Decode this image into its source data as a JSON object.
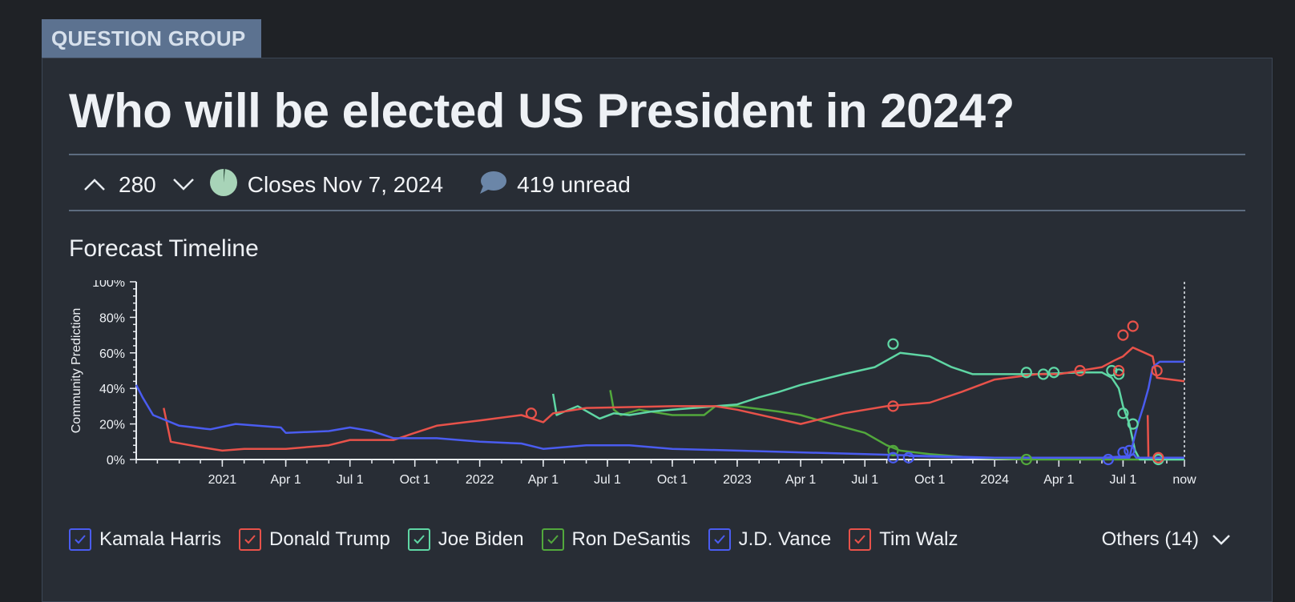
{
  "tag": "QUESTION GROUP",
  "title": "Who will be elected US President in 2024?",
  "meta": {
    "votes": "280",
    "closes": "Closes Nov 7, 2024",
    "comments": "419 unread"
  },
  "section_title": "Forecast Timeline",
  "others": "Others (14)",
  "colors": {
    "harris": "#4a5cf0",
    "trump": "#e8524a",
    "biden": "#5fd6a4",
    "desantis": "#52a83c",
    "vance": "#4a5cf0",
    "walz": "#e8524a",
    "background": "#282d35"
  },
  "chart_data": {
    "type": "line",
    "ylabel": "Community Prediction",
    "yticks": [
      "0%",
      "20%",
      "40%",
      "60%",
      "80%",
      "100%"
    ],
    "ylim": [
      0,
      100
    ],
    "x_range": [
      "2020-09-01",
      "2024-09-26"
    ],
    "xticks": [
      {
        "date": "2021-01-01",
        "label": "2021"
      },
      {
        "date": "2021-04-01",
        "label": "Apr 1"
      },
      {
        "date": "2021-07-01",
        "label": "Jul 1"
      },
      {
        "date": "2021-10-01",
        "label": "Oct 1"
      },
      {
        "date": "2022-01-01",
        "label": "2022"
      },
      {
        "date": "2022-04-01",
        "label": "Apr 1"
      },
      {
        "date": "2022-07-01",
        "label": "Jul 1"
      },
      {
        "date": "2022-10-01",
        "label": "Oct 1"
      },
      {
        "date": "2023-01-01",
        "label": "2023"
      },
      {
        "date": "2023-04-01",
        "label": "Apr 1"
      },
      {
        "date": "2023-07-01",
        "label": "Jul 1"
      },
      {
        "date": "2023-10-01",
        "label": "Oct 1"
      },
      {
        "date": "2024-01-01",
        "label": "2024"
      },
      {
        "date": "2024-04-01",
        "label": "Apr 1"
      },
      {
        "date": "2024-07-01",
        "label": "Jul 1"
      },
      {
        "date": "2024-09-26",
        "label": "now"
      }
    ],
    "series": [
      {
        "name": "Kamala Harris",
        "key": "harris",
        "points": [
          [
            "2020-09-01",
            42
          ],
          [
            "2020-09-10",
            35
          ],
          [
            "2020-09-25",
            25
          ],
          [
            "2020-11-01",
            19
          ],
          [
            "2020-12-15",
            17
          ],
          [
            "2021-01-20",
            20
          ],
          [
            "2021-03-25",
            18
          ],
          [
            "2021-04-01",
            15
          ],
          [
            "2021-06-01",
            16
          ],
          [
            "2021-07-01",
            18
          ],
          [
            "2021-08-01",
            16
          ],
          [
            "2021-09-01",
            12
          ],
          [
            "2021-11-01",
            12
          ],
          [
            "2022-01-01",
            10
          ],
          [
            "2022-03-01",
            9
          ],
          [
            "2022-04-01",
            6
          ],
          [
            "2022-06-01",
            8
          ],
          [
            "2022-08-01",
            8
          ],
          [
            "2022-10-01",
            6
          ],
          [
            "2023-01-01",
            5
          ],
          [
            "2023-04-01",
            4
          ],
          [
            "2023-07-01",
            3
          ],
          [
            "2023-10-01",
            2
          ],
          [
            "2024-01-01",
            1
          ],
          [
            "2024-07-10",
            1
          ],
          [
            "2024-07-22",
            20
          ],
          [
            "2024-07-30",
            30
          ],
          [
            "2024-08-06",
            40
          ],
          [
            "2024-08-12",
            52
          ],
          [
            "2024-08-22",
            55
          ],
          [
            "2024-09-26",
            55
          ]
        ]
      },
      {
        "name": "Donald Trump",
        "key": "trump",
        "points": [
          [
            "2020-10-10",
            29
          ],
          [
            "2020-10-20",
            10
          ],
          [
            "2020-12-01",
            7
          ],
          [
            "2021-01-01",
            5
          ],
          [
            "2021-02-01",
            6
          ],
          [
            "2021-04-01",
            6
          ],
          [
            "2021-06-01",
            8
          ],
          [
            "2021-07-01",
            11
          ],
          [
            "2021-09-01",
            11
          ],
          [
            "2021-10-01",
            15
          ],
          [
            "2021-11-01",
            19
          ],
          [
            "2022-01-01",
            22
          ],
          [
            "2022-03-01",
            25
          ],
          [
            "2022-04-01",
            21
          ],
          [
            "2022-04-15",
            26
          ],
          [
            "2022-06-01",
            29
          ],
          [
            "2022-10-01",
            30
          ],
          [
            "2022-12-01",
            30
          ],
          [
            "2023-01-01",
            28
          ],
          [
            "2023-04-01",
            20
          ],
          [
            "2023-06-01",
            26
          ],
          [
            "2023-08-01",
            30
          ],
          [
            "2023-10-01",
            32
          ],
          [
            "2023-11-15",
            38
          ],
          [
            "2024-01-01",
            45
          ],
          [
            "2024-03-01",
            48
          ],
          [
            "2024-04-01",
            48
          ],
          [
            "2024-06-01",
            52
          ],
          [
            "2024-06-20",
            56
          ],
          [
            "2024-07-01",
            58
          ],
          [
            "2024-07-15",
            63
          ],
          [
            "2024-08-01",
            60
          ],
          [
            "2024-08-12",
            58
          ],
          [
            "2024-08-18",
            46
          ],
          [
            "2024-09-26",
            44
          ]
        ],
        "markers": [
          [
            "2022-03-15",
            26
          ],
          [
            "2023-08-10",
            30
          ],
          [
            "2024-05-01",
            50
          ],
          [
            "2024-06-25",
            50
          ],
          [
            "2024-07-01",
            70
          ],
          [
            "2024-07-15",
            75
          ],
          [
            "2024-08-18",
            50
          ]
        ]
      },
      {
        "name": "Joe Biden",
        "key": "biden",
        "points": [
          [
            "2022-04-15",
            37
          ],
          [
            "2022-04-20",
            25
          ],
          [
            "2022-05-01",
            27
          ],
          [
            "2022-05-20",
            30
          ],
          [
            "2022-06-20",
            23
          ],
          [
            "2022-07-10",
            26
          ],
          [
            "2022-08-01",
            25
          ],
          [
            "2022-09-01",
            27
          ],
          [
            "2022-10-01",
            28
          ],
          [
            "2022-11-01",
            29
          ],
          [
            "2022-12-01",
            30
          ],
          [
            "2023-01-01",
            31
          ],
          [
            "2023-02-01",
            35
          ],
          [
            "2023-03-01",
            38
          ],
          [
            "2023-04-01",
            42
          ],
          [
            "2023-06-01",
            48
          ],
          [
            "2023-07-15",
            52
          ],
          [
            "2023-08-20",
            60
          ],
          [
            "2023-10-01",
            58
          ],
          [
            "2023-11-01",
            52
          ],
          [
            "2023-12-01",
            48
          ],
          [
            "2024-01-01",
            48
          ],
          [
            "2024-03-01",
            48
          ],
          [
            "2024-05-01",
            49
          ],
          [
            "2024-06-01",
            49
          ],
          [
            "2024-06-15",
            46
          ],
          [
            "2024-06-25",
            40
          ],
          [
            "2024-07-01",
            30
          ],
          [
            "2024-07-10",
            20
          ],
          [
            "2024-07-18",
            5
          ],
          [
            "2024-07-25",
            0
          ],
          [
            "2024-09-26",
            0
          ]
        ],
        "markers": [
          [
            "2023-08-10",
            65
          ],
          [
            "2024-02-15",
            49
          ],
          [
            "2024-03-10",
            48
          ],
          [
            "2024-03-25",
            49
          ],
          [
            "2024-06-15",
            50
          ],
          [
            "2024-06-25",
            48
          ],
          [
            "2024-07-01",
            26
          ],
          [
            "2024-07-15",
            20
          ],
          [
            "2024-08-20",
            0
          ]
        ]
      },
      {
        "name": "Ron DeSantis",
        "key": "desantis",
        "points": [
          [
            "2022-07-05",
            39
          ],
          [
            "2022-07-10",
            28
          ],
          [
            "2022-07-20",
            25
          ],
          [
            "2022-08-15",
            28
          ],
          [
            "2022-10-01",
            25
          ],
          [
            "2022-11-15",
            25
          ],
          [
            "2022-12-01",
            30
          ],
          [
            "2023-01-01",
            30
          ],
          [
            "2023-03-01",
            27
          ],
          [
            "2023-04-01",
            25
          ],
          [
            "2023-05-15",
            20
          ],
          [
            "2023-07-01",
            15
          ],
          [
            "2023-08-01",
            8
          ],
          [
            "2023-08-20",
            5
          ],
          [
            "2023-10-01",
            3
          ],
          [
            "2023-12-01",
            1
          ],
          [
            "2024-02-15",
            0
          ],
          [
            "2024-09-26",
            0
          ]
        ],
        "markers": [
          [
            "2023-08-10",
            5
          ],
          [
            "2024-02-15",
            0
          ]
        ]
      },
      {
        "name": "J.D. Vance",
        "key": "vance",
        "points": [
          [
            "2023-09-01",
            2
          ],
          [
            "2023-12-01",
            1
          ],
          [
            "2024-06-01",
            1
          ],
          [
            "2024-07-10",
            2
          ],
          [
            "2024-07-16",
            3
          ],
          [
            "2024-07-20",
            1
          ],
          [
            "2024-09-26",
            1
          ]
        ],
        "markers": [
          [
            "2023-08-10",
            1
          ],
          [
            "2023-09-01",
            1
          ],
          [
            "2024-06-10",
            0
          ],
          [
            "2024-07-01",
            4
          ],
          [
            "2024-07-10",
            5
          ]
        ]
      },
      {
        "name": "Tim Walz",
        "key": "walz",
        "points": [
          [
            "2024-08-05",
            25
          ],
          [
            "2024-08-06",
            1
          ],
          [
            "2024-09-26",
            1
          ]
        ],
        "markers": [
          [
            "2024-08-20",
            1
          ]
        ]
      }
    ]
  }
}
